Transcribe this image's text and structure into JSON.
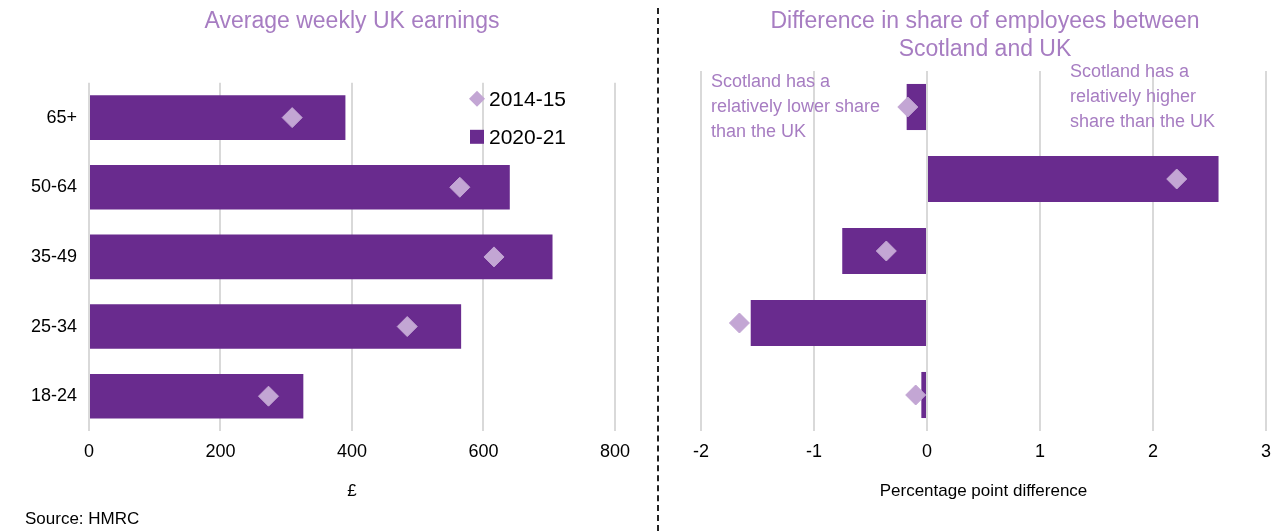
{
  "chart_data": [
    {
      "type": "bar",
      "orientation": "horizontal",
      "title": "Average weekly UK earnings",
      "xlabel": "£",
      "categories": [
        "65+",
        "50-64",
        "35-49",
        "25-34",
        "18-24"
      ],
      "series": [
        {
          "name": "2014-15",
          "type": "scatter",
          "color": "#c3a6d4",
          "values": [
            309,
            564,
            616,
            484,
            273
          ]
        },
        {
          "name": "2020-21",
          "color": "#692b8e",
          "values": [
            390,
            640,
            705,
            566,
            326
          ]
        }
      ],
      "xlim": [
        0,
        800
      ],
      "xticks": [
        0,
        200,
        400,
        600,
        800
      ],
      "grid": "x",
      "legend": "top right",
      "marker": "diamond",
      "annotations": [
        "Source: HMRC"
      ]
    },
    {
      "type": "bar",
      "orientation": "horizontal",
      "title": "Difference in share of employees between Scotland and UK",
      "xlabel": "Percentage point difference",
      "categories": [
        null,
        null,
        null,
        null,
        null
      ],
      "series": [
        {
          "type": "scatter",
          "color": "#c3a6d4",
          "values": [
            -0.17,
            2.21,
            -0.36,
            -1.66,
            -0.1
          ]
        },
        {
          "color": "#692b8e",
          "values": [
            -0.18,
            2.58,
            -0.75,
            -1.56,
            -0.05
          ]
        }
      ],
      "xlim": [
        -2,
        3
      ],
      "xticks": [
        -2,
        -1,
        0,
        1,
        2,
        3
      ],
      "grid": "x",
      "tick_labels": "x",
      "marker": "diamond",
      "annotations": [
        "Scotland has a relatively lower share than the UK",
        "Scotland has a relatively higher share than the UK"
      ]
    }
  ]
}
